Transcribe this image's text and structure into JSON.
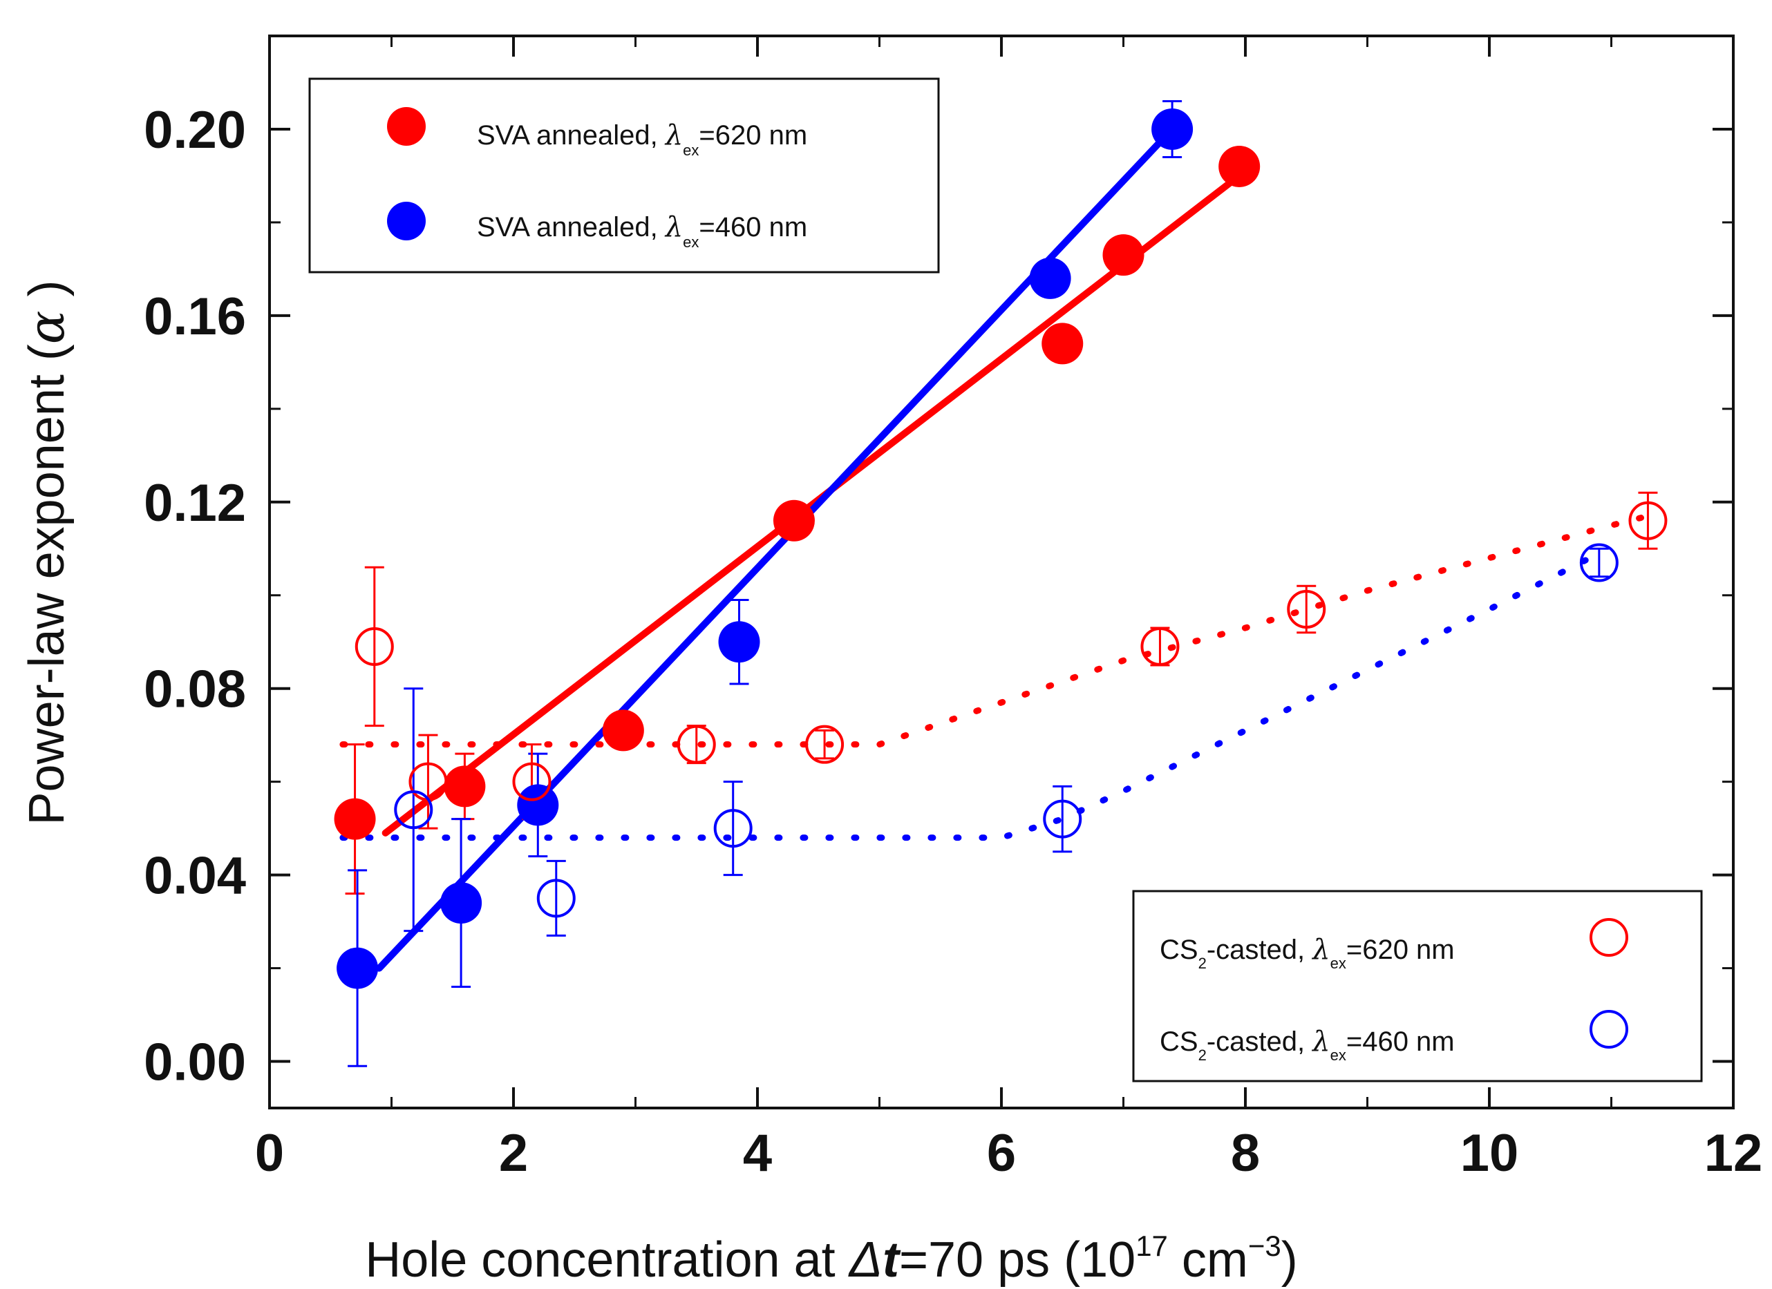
{
  "chart_data": {
    "type": "scatter",
    "xlabel": {
      "prefix": "Hole concentration at ",
      "delta": "Δ",
      "t": "t",
      "eq": "=70 ps (10",
      "sup1": "17",
      "unit": " cm",
      "sup2": "−3",
      "close": ")"
    },
    "ylabel": {
      "text": "Power-law exponent (",
      "alpha": "α",
      "close": " )"
    },
    "xlim": [
      0,
      12
    ],
    "ylim": [
      -0.01,
      0.22
    ],
    "xticks": [
      0,
      2,
      4,
      6,
      8,
      10,
      12
    ],
    "xtick_labels": [
      "0",
      "2",
      "4",
      "6",
      "8",
      "10",
      "12"
    ],
    "yticks": [
      0.0,
      0.04,
      0.08,
      0.12,
      0.16,
      0.2
    ],
    "ytick_labels": [
      "0.00",
      "0.04",
      "0.08",
      "0.12",
      "0.16",
      "0.20"
    ],
    "series": [
      {
        "name": "SVA annealed, λex=620 nm",
        "color": "#ff0000",
        "marker": "filled-circle",
        "x": [
          0.7,
          1.6,
          2.9,
          4.3,
          6.5,
          7.0,
          7.95
        ],
        "y": [
          0.052,
          0.059,
          0.071,
          0.116,
          0.154,
          0.173,
          0.192
        ],
        "yerr": [
          0.016,
          0.007,
          0.0,
          0.0,
          0.0,
          0.0,
          0.0
        ],
        "fit": {
          "x": [
            0.95,
            7.95
          ],
          "y": [
            0.049,
            0.19
          ]
        }
      },
      {
        "name": "SVA annealed, λex=460 nm",
        "color": "#0000ff",
        "marker": "filled-circle",
        "x": [
          0.72,
          1.57,
          2.2,
          3.85,
          6.4,
          7.4
        ],
        "y": [
          0.02,
          0.034,
          0.055,
          0.09,
          0.168,
          0.2
        ],
        "yerr": [
          0.021,
          0.018,
          0.011,
          0.009,
          0.0,
          0.006
        ],
        "fit": {
          "x": [
            0.9,
            7.4
          ],
          "y": [
            0.02,
            0.2
          ]
        }
      },
      {
        "name": "CS2-casted, λex=620 nm",
        "color": "#ff0000",
        "marker": "open-circle",
        "x": [
          0.86,
          1.3,
          2.15,
          3.5,
          4.55,
          7.3,
          8.5,
          11.3
        ],
        "y": [
          0.089,
          0.06,
          0.06,
          0.068,
          0.068,
          0.089,
          0.097,
          0.116
        ],
        "yerr": [
          0.017,
          0.01,
          0.008,
          0.004,
          0.003,
          0.004,
          0.005,
          0.006
        ],
        "fit": {
          "x": [
            0.6,
            1,
            2,
            3,
            4,
            5,
            6,
            7,
            8,
            9,
            10,
            11,
            11.3
          ],
          "y": [
            0.068,
            0.068,
            0.068,
            0.068,
            0.068,
            0.068,
            0.077,
            0.086,
            0.093,
            0.101,
            0.108,
            0.115,
            0.117
          ]
        }
      },
      {
        "name": "CS2-casted, λex=460 nm",
        "color": "#0000ff",
        "marker": "open-circle",
        "x": [
          1.18,
          2.35,
          3.8,
          6.5,
          10.9
        ],
        "y": [
          0.054,
          0.035,
          0.05,
          0.052,
          0.107
        ],
        "yerr": [
          0.026,
          0.008,
          0.01,
          0.007,
          0.003
        ],
        "fit": {
          "x": [
            0.6,
            2,
            4,
            6,
            6.5,
            7,
            8,
            9,
            10,
            10.9
          ],
          "y": [
            0.048,
            0.048,
            0.048,
            0.048,
            0.052,
            0.058,
            0.071,
            0.084,
            0.097,
            0.109
          ]
        }
      }
    ],
    "legend_top": {
      "position": "top-left",
      "entries": [
        {
          "series": 0,
          "main": "SVA annealed, ",
          "lambda": "λ",
          "sub": "ex",
          "rest": "=620 nm"
        },
        {
          "series": 1,
          "main": "SVA annealed, ",
          "lambda": "λ",
          "sub": "ex",
          "rest": "=460 nm"
        }
      ]
    },
    "legend_bottom": {
      "position": "bottom-right",
      "entries": [
        {
          "series": 2,
          "pre": "CS",
          "pre_sub": "2",
          "main": "-casted, ",
          "lambda": "λ",
          "sub": "ex",
          "rest": "=620 nm"
        },
        {
          "series": 3,
          "pre": "CS",
          "pre_sub": "2",
          "main": "-casted, ",
          "lambda": "λ",
          "sub": "ex",
          "rest": "=460 nm"
        }
      ]
    }
  }
}
